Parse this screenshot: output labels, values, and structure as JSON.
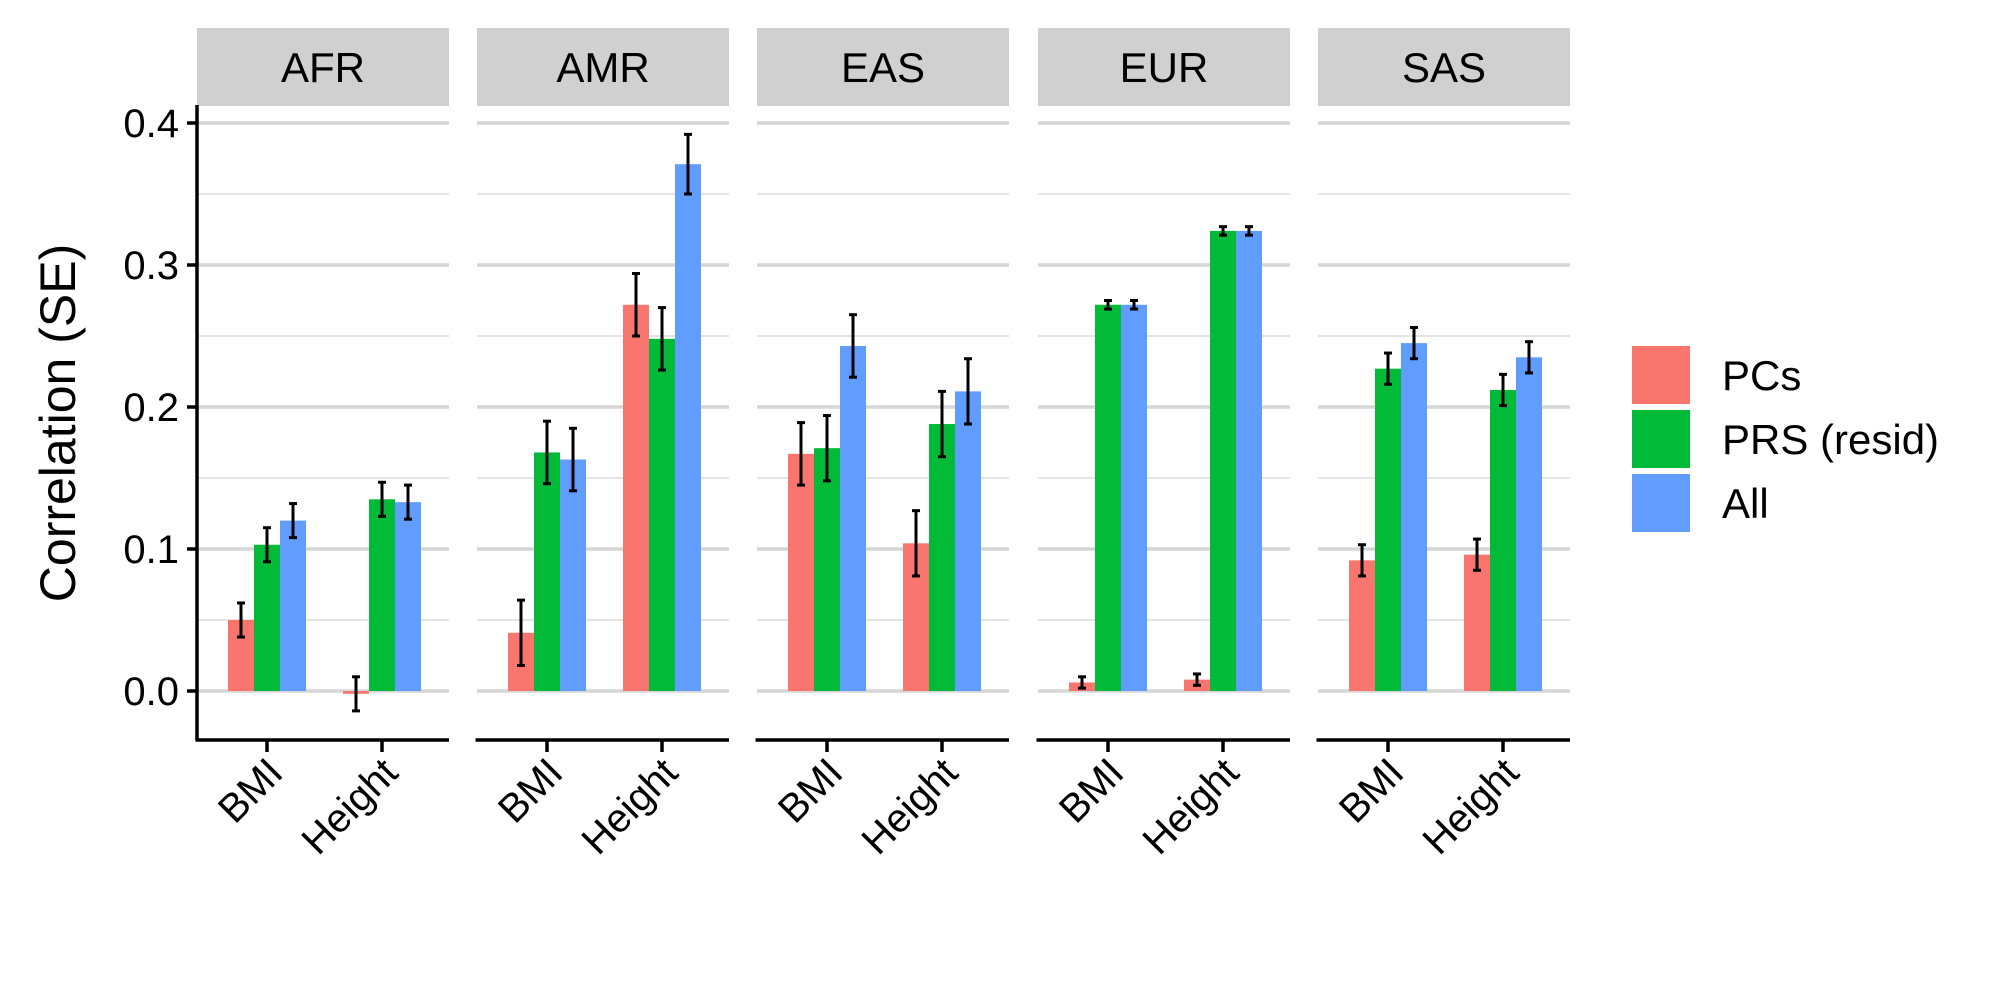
{
  "chart_data": {
    "type": "bar",
    "ylabel": "Correlation (SE)",
    "xlabel": "",
    "ylim": [
      -0.035,
      0.41
    ],
    "yticks": [
      0.0,
      0.1,
      0.2,
      0.3,
      0.4
    ],
    "ytick_labels": [
      "0.0",
      "0.1",
      "0.2",
      "0.3",
      "0.4"
    ],
    "grid": true,
    "legend_position": "right",
    "categories": [
      "BMI",
      "Height"
    ],
    "series": [
      {
        "name": "PCs",
        "color": "#F8766D"
      },
      {
        "name": "PRS (resid)",
        "color": "#00BA38"
      },
      {
        "name": "All",
        "color": "#619CFF"
      }
    ],
    "facets": [
      {
        "label": "AFR",
        "values": [
          [
            0.05,
            0.103,
            0.12
          ],
          [
            -0.002,
            0.135,
            0.133
          ]
        ],
        "se": [
          [
            0.012,
            0.012,
            0.012
          ],
          [
            0.012,
            0.012,
            0.012
          ]
        ]
      },
      {
        "label": "AMR",
        "values": [
          [
            0.041,
            0.168,
            0.163
          ],
          [
            0.272,
            0.248,
            0.371
          ]
        ],
        "se": [
          [
            0.023,
            0.022,
            0.022
          ],
          [
            0.022,
            0.022,
            0.021
          ]
        ]
      },
      {
        "label": "EAS",
        "values": [
          [
            0.167,
            0.171,
            0.243
          ],
          [
            0.104,
            0.188,
            0.211
          ]
        ],
        "se": [
          [
            0.022,
            0.023,
            0.022
          ],
          [
            0.023,
            0.023,
            0.023
          ]
        ]
      },
      {
        "label": "EUR",
        "values": [
          [
            0.006,
            0.272,
            0.272
          ],
          [
            0.008,
            0.324,
            0.324
          ]
        ],
        "se": [
          [
            0.004,
            0.003,
            0.003
          ],
          [
            0.004,
            0.003,
            0.003
          ]
        ]
      },
      {
        "label": "SAS",
        "values": [
          [
            0.092,
            0.227,
            0.245
          ],
          [
            0.096,
            0.212,
            0.235
          ]
        ],
        "se": [
          [
            0.011,
            0.011,
            0.011
          ],
          [
            0.011,
            0.011,
            0.011
          ]
        ]
      }
    ]
  }
}
